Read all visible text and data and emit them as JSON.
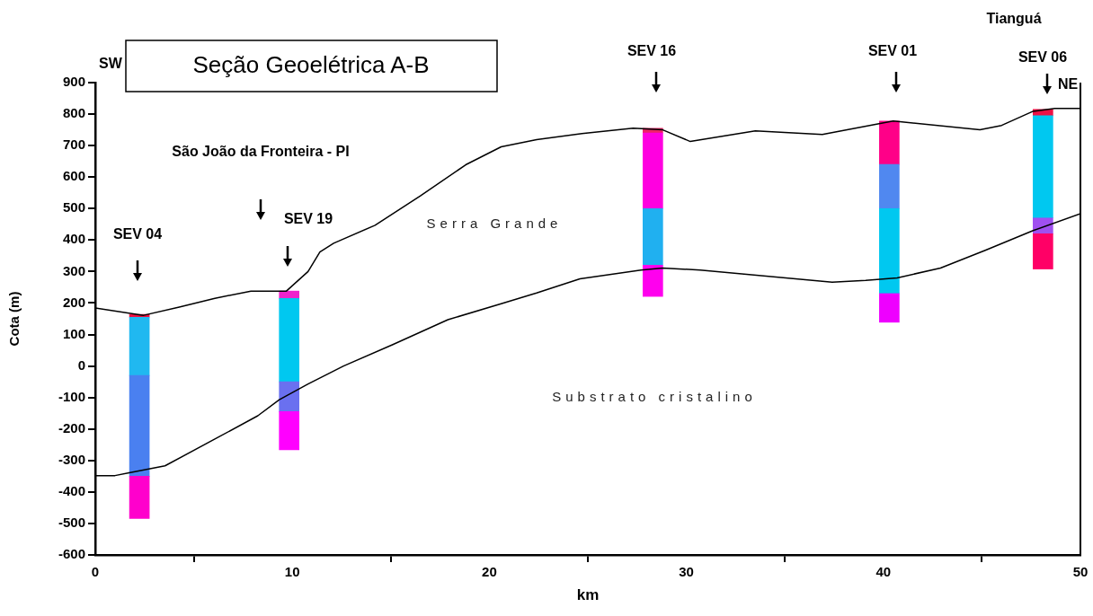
{
  "chart_data": {
    "type": "line",
    "title": "Seção Geoelétrica A-B",
    "xlabel": "km",
    "ylabel": "Cota (m)",
    "xlim": [
      0,
      50
    ],
    "ylim": [
      -600,
      900
    ],
    "xticks": [
      0,
      10,
      20,
      30,
      40,
      50
    ],
    "yticks": [
      -600,
      -500,
      -400,
      -300,
      -200,
      -100,
      0,
      100,
      200,
      300,
      400,
      500,
      600,
      700,
      800,
      900
    ],
    "grid": false,
    "legend": false,
    "series": [
      {
        "color": "#000000",
        "x": [
          0,
          2.45,
          4.26,
          6.07,
          7.9,
          9.7,
          10.8,
          11.4,
          12.1,
          14.2,
          16.5,
          18.8,
          20.6,
          22.4,
          24.7,
          27.3,
          28.8,
          30.2,
          33.5,
          36.9,
          40.5,
          44.9,
          46,
          47.6,
          48.7,
          50
        ],
        "values": [
          184,
          161,
          187,
          215,
          238,
          238,
          300,
          362,
          390,
          447,
          540,
          639,
          696,
          719,
          738,
          755,
          750,
          713,
          747,
          735,
          778,
          750,
          764,
          809,
          818,
          818
        ]
      },
      {
        "color": "#000000",
        "x": [
          0,
          1.0,
          1.72,
          3.54,
          6.07,
          8.25,
          9.34,
          10.8,
          12.6,
          15.1,
          17.9,
          20.6,
          22.4,
          24.6,
          27.7,
          28.8,
          30.7,
          37.4,
          39.1,
          40.7,
          42.9,
          45.2,
          47.6,
          50
        ],
        "values": [
          -348,
          -348,
          -339,
          -317,
          -232,
          -158,
          -107,
          -57,
          0,
          68,
          147,
          198,
          232,
          277,
          305,
          311,
          305,
          266,
          272,
          280,
          311,
          368,
          430,
          484
        ]
      },
      {
        "type": "bar",
        "x": [
          2.24,
          9.84,
          28.3,
          40.3,
          48.1
        ],
        "base": [
          -484,
          -266,
          221,
          139,
          308
        ],
        "values": [
          134,
          121,
          99,
          91,
          112
        ],
        "colors": [
          "#ff00cc",
          "#ff00ff",
          "#ff00ee",
          "#ee00ff",
          "#ff0066"
        ]
      },
      {
        "type": "bar",
        "x": [
          2.24,
          9.84,
          28.3,
          40.3,
          48.1
        ],
        "base": [
          -350,
          -145,
          320,
          230,
          420
        ],
        "values": [
          320,
          95,
          180,
          270,
          50
        ],
        "colors": [
          "#4a80f0",
          "#6a70f0",
          "#20b0f0",
          "#00c8f0",
          "#a050f0"
        ]
      },
      {
        "type": "bar",
        "x": [
          2.24,
          9.84,
          28.3,
          40.3,
          48.1
        ],
        "base": [
          -30,
          -50,
          500,
          500,
          470
        ],
        "values": [
          185,
          265,
          240,
          140,
          325
        ],
        "colors": [
          "#20b8f0",
          "#00c8f0",
          "#ff00e0",
          "#5088f0",
          "#00c8f0"
        ]
      },
      {
        "type": "bar",
        "x": [
          2.24,
          9.84,
          28.3,
          40.3,
          48.1
        ],
        "base": [
          155,
          215,
          740,
          640,
          795
        ],
        "values": [
          9,
          23,
          15,
          138,
          20
        ],
        "colors": [
          "#ee1144",
          "#ee22cc",
          "#ee2266",
          "#ff0088",
          "#ee1144"
        ]
      }
    ],
    "ref_lines": [
      {
        "axis": "x",
        "value": 50,
        "color": "#000000"
      }
    ],
    "annotations": [
      "SW",
      "NE",
      "Tianguá",
      "São João da Fronteira - PI",
      "Serra Grande",
      "Substrato cristalino",
      "SEV 04",
      "SEV 19",
      "SEV 16",
      "SEV 01",
      "SEV 06"
    ]
  }
}
